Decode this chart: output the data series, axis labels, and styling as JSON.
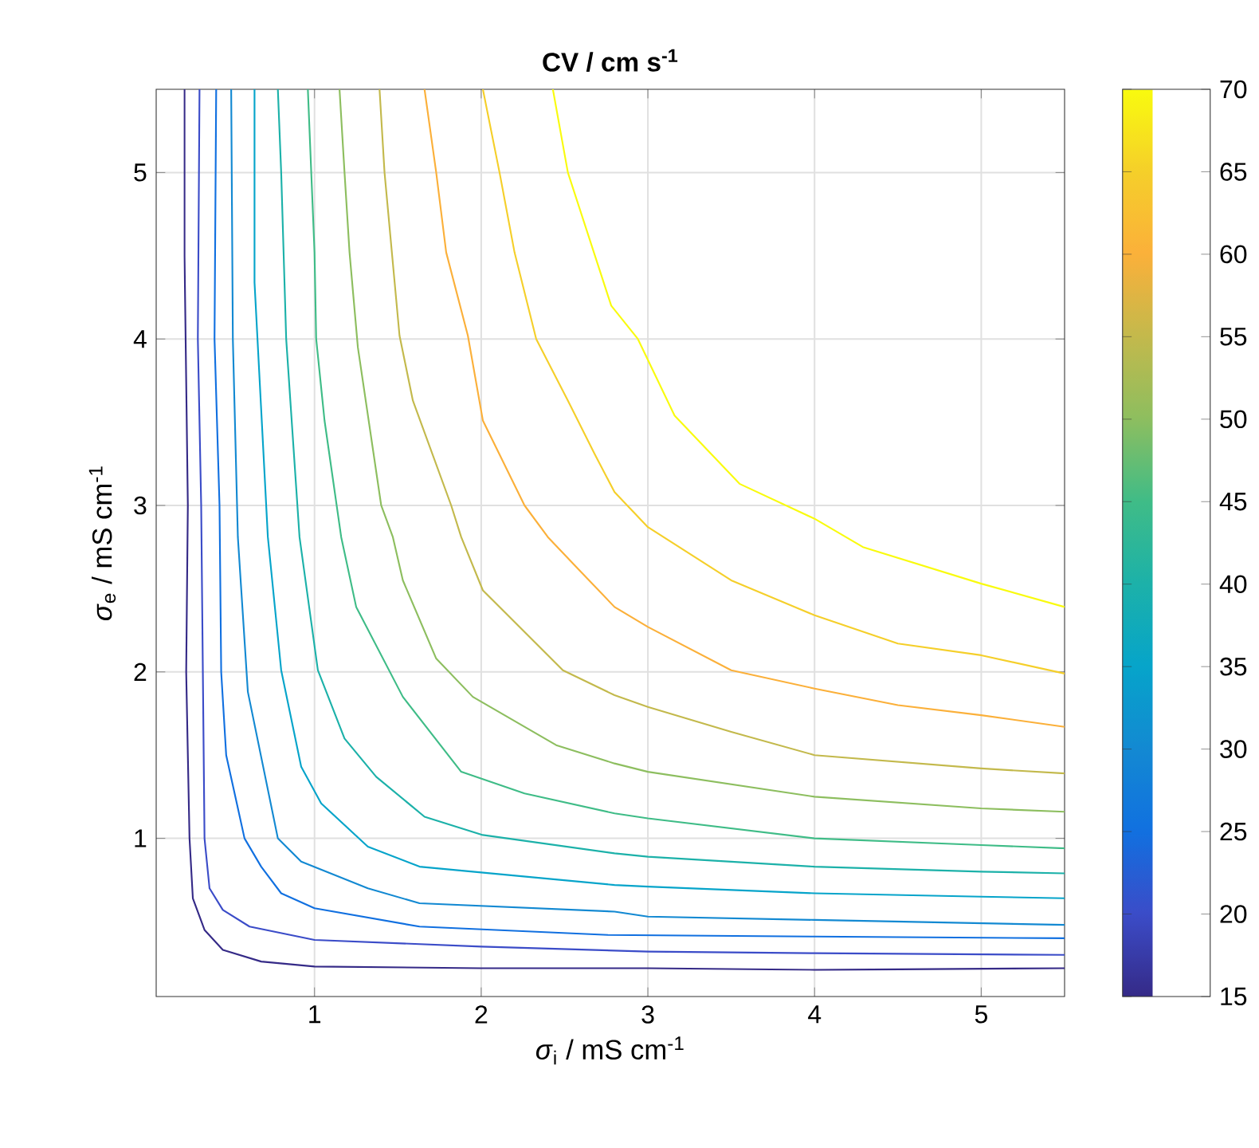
{
  "chart_data": {
    "type": "line",
    "title": "CV / cm s$^{-1}$",
    "xlabel": "*σ*$_{i}$ / mS cm$^{-1}$",
    "ylabel": "*σ*$_{e}$ / mS cm$^{-1}$",
    "xlim": [
      0.05,
      5.5
    ],
    "ylim": [
      0.05,
      5.5
    ],
    "xticks": [
      1,
      2,
      3,
      4,
      5
    ],
    "yticks": [
      1,
      2,
      3,
      4,
      5
    ],
    "clim": [
      15,
      70
    ],
    "cticks": [
      15,
      20,
      25,
      30,
      35,
      40,
      45,
      50,
      55,
      60,
      65,
      70
    ],
    "grid": true,
    "marker": "none",
    "line_style": "solid",
    "series": [
      {
        "color": "#352a87",
        "x": [
          0.22,
          0.22,
          0.24,
          0.23,
          0.25,
          0.27,
          0.34,
          0.45,
          0.68,
          1.0,
          2.0,
          3.0,
          4.0,
          5.5
        ],
        "values": [
          5.5,
          4.5,
          3.0,
          2.0,
          1.0,
          0.64,
          0.45,
          0.33,
          0.26,
          0.23,
          0.22,
          0.22,
          0.21,
          0.22
        ]
      },
      {
        "color": "#3b4cc8",
        "x": [
          0.31,
          0.3,
          0.32,
          0.33,
          0.34,
          0.37,
          0.45,
          0.61,
          1.0,
          2.0,
          3.0,
          4.0,
          5.5
        ],
        "values": [
          5.5,
          4.0,
          3.0,
          2.0,
          1.0,
          0.7,
          0.57,
          0.47,
          0.39,
          0.35,
          0.32,
          0.31,
          0.3
        ]
      },
      {
        "color": "#1170e0",
        "x": [
          0.41,
          0.4,
          0.43,
          0.44,
          0.47,
          0.58,
          0.68,
          0.8,
          1.0,
          1.63,
          2.76,
          4.0,
          5.5
        ],
        "values": [
          5.5,
          4.0,
          3.0,
          2.0,
          1.5,
          1.0,
          0.83,
          0.67,
          0.58,
          0.47,
          0.42,
          0.41,
          0.4
        ]
      },
      {
        "color": "#1389d2",
        "x": [
          0.5,
          0.51,
          0.54,
          0.6,
          0.78,
          0.92,
          1.32,
          1.63,
          2.8,
          3.0,
          4.0,
          5.0,
          5.5
        ],
        "values": [
          5.5,
          4.0,
          2.81,
          1.88,
          1.0,
          0.86,
          0.7,
          0.61,
          0.56,
          0.53,
          0.51,
          0.49,
          0.48
        ]
      },
      {
        "color": "#06a4ca",
        "x": [
          0.64,
          0.64,
          0.72,
          0.8,
          0.92,
          1.04,
          1.32,
          1.63,
          2.8,
          3.0,
          4.0,
          5.0,
          5.5
        ],
        "values": [
          5.5,
          4.34,
          2.81,
          2.01,
          1.43,
          1.21,
          0.95,
          0.83,
          0.72,
          0.71,
          0.67,
          0.65,
          0.64
        ]
      },
      {
        "color": "#1cb1a9",
        "x": [
          0.78,
          0.8,
          0.83,
          0.91,
          1.02,
          1.18,
          1.37,
          1.66,
          2.01,
          2.8,
          3.0,
          4.0,
          5.0,
          5.5
        ],
        "values": [
          5.5,
          5.0,
          4.0,
          2.81,
          2.01,
          1.6,
          1.37,
          1.13,
          1.02,
          0.91,
          0.89,
          0.83,
          0.8,
          0.79
        ]
      },
      {
        "color": "#3fbc87",
        "x": [
          0.96,
          1.0,
          1.01,
          1.06,
          1.16,
          1.25,
          1.53,
          1.88,
          2.26,
          2.8,
          3.0,
          4.0,
          5.0,
          5.5
        ],
        "values": [
          5.5,
          4.52,
          4.0,
          3.51,
          2.81,
          2.39,
          1.85,
          1.4,
          1.27,
          1.15,
          1.12,
          1.0,
          0.96,
          0.94
        ]
      },
      {
        "color": "#8dbe5f",
        "x": [
          1.15,
          1.18,
          1.21,
          1.26,
          1.4,
          1.47,
          1.53,
          1.73,
          1.95,
          2.45,
          2.8,
          3.0,
          4.0,
          5.0,
          5.5
        ],
        "values": [
          5.5,
          5.0,
          4.52,
          3.95,
          3.0,
          2.81,
          2.55,
          2.08,
          1.85,
          1.56,
          1.45,
          1.4,
          1.25,
          1.18,
          1.16
        ]
      },
      {
        "color": "#c3b94c",
        "x": [
          1.39,
          1.42,
          1.51,
          1.59,
          1.82,
          1.88,
          2.01,
          2.49,
          2.8,
          3.0,
          3.5,
          4.0,
          5.0,
          5.5
        ],
        "values": [
          5.5,
          5.0,
          4.02,
          3.63,
          3.0,
          2.81,
          2.49,
          2.01,
          1.86,
          1.79,
          1.64,
          1.5,
          1.42,
          1.39
        ]
      },
      {
        "color": "#fbb03a",
        "x": [
          1.66,
          1.73,
          1.79,
          1.92,
          2.01,
          2.26,
          2.4,
          2.59,
          2.8,
          3.0,
          3.5,
          4.0,
          4.5,
          5.0,
          5.5
        ],
        "values": [
          5.5,
          5.0,
          4.52,
          4.02,
          3.51,
          3.0,
          2.81,
          2.61,
          2.39,
          2.27,
          2.01,
          1.9,
          1.8,
          1.74,
          1.67
        ]
      },
      {
        "color": "#f5cf2a",
        "x": [
          2.01,
          2.11,
          2.2,
          2.33,
          2.52,
          2.68,
          2.8,
          3.0,
          3.5,
          4.0,
          4.5,
          5.0,
          5.5
        ],
        "values": [
          5.5,
          5.0,
          4.52,
          4.0,
          3.63,
          3.31,
          3.08,
          2.87,
          2.55,
          2.34,
          2.17,
          2.1,
          1.99
        ]
      },
      {
        "color": "#f9fb0e",
        "x": [
          2.43,
          2.52,
          2.78,
          2.94,
          3.16,
          3.55,
          4.0,
          4.29,
          5.0,
          5.5
        ],
        "values": [
          5.5,
          5.0,
          4.2,
          4.0,
          3.54,
          3.13,
          2.92,
          2.75,
          2.53,
          2.39
        ]
      }
    ]
  }
}
